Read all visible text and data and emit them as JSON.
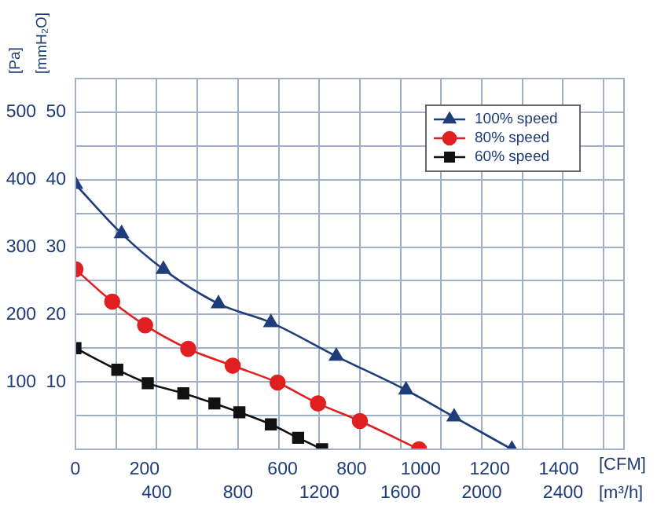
{
  "chart_data": {
    "type": "line",
    "ylabel": "[Pa]",
    "y2label": "[mmH₂O]",
    "xlabel": "[m³/h]",
    "x2label": "[CFM]",
    "xlim": [
      0,
      2700
    ],
    "xticks": [
      {
        "value": 0,
        "label": null
      },
      {
        "value": 200,
        "label": null
      },
      400,
      {
        "value": 600,
        "label": null
      },
      800,
      {
        "value": 1000,
        "label": null
      },
      1200,
      {
        "value": 1400,
        "label": null
      },
      1600,
      {
        "value": 1800,
        "label": null
      },
      2000,
      {
        "value": 2200,
        "label": null
      },
      2400,
      {
        "value": 2600,
        "label": null
      }
    ],
    "x2lim": [
      0,
      1589
    ],
    "x2ticks": [
      0,
      200,
      600,
      800,
      1000,
      1200,
      1400
    ],
    "ylim": [
      0,
      550
    ],
    "yticks": [
      {
        "value": 0,
        "label": null
      },
      {
        "value": 50,
        "label": null
      },
      100,
      {
        "value": 150,
        "label": null
      },
      200,
      {
        "value": 250,
        "label": null
      },
      300,
      {
        "value": 350,
        "label": null
      },
      400,
      {
        "value": 450,
        "label": null
      },
      500
    ],
    "y2lim": [
      0,
      55
    ],
    "y2ticks": [
      10,
      20,
      30,
      40,
      50
    ],
    "grid": true,
    "legend": "top right",
    "line_style": "solid",
    "series": [
      {
        "name": "100% speed",
        "color": "#1f3d7a",
        "marker": "triangle",
        "x": [
          0,
          227,
          433,
          704,
          962,
          1284,
          1627,
          1864,
          2148
        ],
        "values": [
          393,
          320,
          267,
          216,
          188,
          138,
          88,
          48,
          0
        ]
      },
      {
        "name": "80% speed",
        "color": "#e02020",
        "marker": "circle",
        "x": [
          0,
          181,
          343,
          555,
          774,
          995,
          1194,
          1400,
          1691
        ],
        "values": [
          267,
          219,
          184,
          149,
          124,
          99,
          68,
          42,
          0
        ]
      },
      {
        "name": "60% speed",
        "color": "#111111",
        "marker": "square",
        "x": [
          0,
          206,
          356,
          531,
          684,
          807,
          962,
          1096,
          1214
        ],
        "values": [
          150,
          118,
          98,
          83,
          68,
          55,
          37,
          17,
          0
        ]
      }
    ]
  }
}
